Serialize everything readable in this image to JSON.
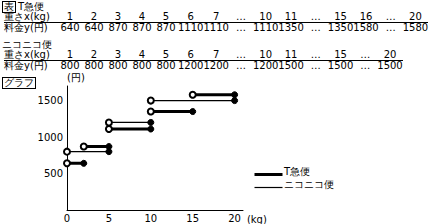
{
  "header": {
    "table_label": "表",
    "graph_label": "グラフ"
  },
  "tables": [
    {
      "title": "T急便",
      "rows": [
        [
          "重さx(kg)",
          1,
          2,
          3,
          4,
          5,
          6,
          7,
          "…",
          10,
          11,
          "…",
          15,
          16,
          "…",
          20
        ],
        [
          "料金y(円)",
          640,
          640,
          870,
          870,
          870,
          1110,
          1110,
          "…",
          1110,
          1350,
          "…",
          1350,
          1580,
          "…",
          1580
        ]
      ]
    },
    {
      "title": "ニコニコ便",
      "rows": [
        [
          "重さx(kg)",
          1,
          2,
          3,
          4,
          5,
          6,
          7,
          "…",
          10,
          11,
          "…",
          15,
          "…",
          20
        ],
        [
          "料金y(円)",
          800,
          800,
          800,
          800,
          800,
          1200,
          1200,
          "…",
          1200,
          1500,
          "…",
          1500,
          "…",
          1500
        ]
      ]
    }
  ],
  "chart_data": {
    "type": "line",
    "x_label": "(kg)",
    "y_label": "(円)",
    "xlim": [
      0,
      21
    ],
    "xticks": [
      0,
      5,
      10,
      15,
      20
    ],
    "ylim": [
      0,
      1700
    ],
    "yticks": [
      500,
      1000,
      1500
    ],
    "grid": false,
    "legend": "lower right",
    "series": [
      {
        "name": "T急便",
        "color": "#000000",
        "line_style": "thick",
        "breaks": [
          0,
          2,
          5,
          10,
          15,
          20
        ],
        "values": [
          640,
          870,
          1110,
          1350,
          1580
        ]
      },
      {
        "name": "ニコニコ便",
        "color": "#000000",
        "line_style": "thin",
        "breaks": [
          0,
          5,
          10,
          20
        ],
        "values": [
          800,
          1200,
          1500
        ]
      }
    ]
  }
}
